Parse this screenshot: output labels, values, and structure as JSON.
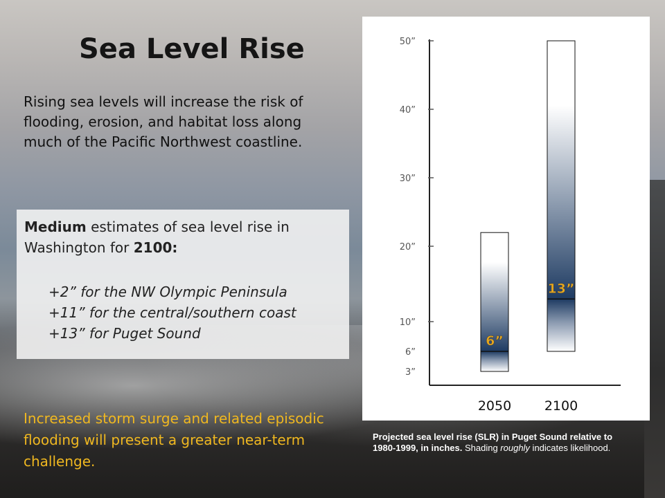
{
  "slide": {
    "title": "Sea Level Rise",
    "intro": "Rising sea levels will increase the risk of flooding, erosion, and habitat loss along much of the Pacific Northwest coastline.",
    "estimates": {
      "heading_bold1": "Medium",
      "heading_mid": " estimates of sea level rise in Washington for ",
      "heading_bold2": "2100:",
      "items": [
        "+2” for the NW Olympic Peninsula",
        "+11” for the central/southern coast",
        "+13” for  Puget Sound"
      ]
    },
    "storm_text": "Increased storm surge and related episodic flooding will present a greater near-term challenge.",
    "caption": {
      "bold": "Projected sea level rise (SLR) in Puget Sound relative to 1980-1999, in inches.",
      "normal1": " Shading ",
      "italic": "roughly",
      "normal2": " indicates likelihood."
    }
  },
  "colors": {
    "storm_text": "#f0b820",
    "bar_dark": "#1e3b62",
    "value_label": "#e8a81c"
  },
  "chart_data": {
    "type": "bar",
    "title": "",
    "xlabel": "",
    "ylabel": "",
    "ylim": [
      0,
      50
    ],
    "y_ticks": [
      {
        "value": 50,
        "label": "50”",
        "tick": true
      },
      {
        "value": 40,
        "label": "40”",
        "tick": true
      },
      {
        "value": 30,
        "label": "30”",
        "tick": true
      },
      {
        "value": 20,
        "label": "20”",
        "tick": true
      },
      {
        "value": 10,
        "label": "10”",
        "tick": true
      },
      {
        "value": 6,
        "label": "6”",
        "tick": false
      },
      {
        "value": 3,
        "label": "3”",
        "tick": false
      }
    ],
    "categories": [
      "2050",
      "2100"
    ],
    "bars": [
      {
        "category": "2050",
        "low": 3,
        "high": 22,
        "central": 6,
        "label": "6”"
      },
      {
        "category": "2100",
        "low": 6,
        "high": 50,
        "central": 13,
        "label": "13”"
      }
    ],
    "grid": false,
    "shading": "roughly indicates likelihood"
  }
}
